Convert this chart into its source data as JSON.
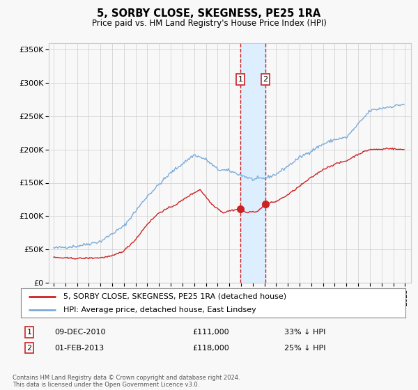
{
  "title": "5, SORBY CLOSE, SKEGNESS, PE25 1RA",
  "subtitle": "Price paid vs. HM Land Registry's House Price Index (HPI)",
  "ylim": [
    0,
    360000
  ],
  "yticks": [
    0,
    50000,
    100000,
    150000,
    200000,
    250000,
    300000,
    350000
  ],
  "ytick_labels": [
    "£0",
    "£50K",
    "£100K",
    "£150K",
    "£200K",
    "£250K",
    "£300K",
    "£350K"
  ],
  "xlim_start": 1994.6,
  "xlim_end": 2025.5,
  "sale1_date": 2010.94,
  "sale1_price": 111000,
  "sale2_date": 2013.08,
  "sale2_price": 118000,
  "legend_line1": "5, SORBY CLOSE, SKEGNESS, PE25 1RA (detached house)",
  "legend_line2": "HPI: Average price, detached house, East Lindsey",
  "footnote": "Contains HM Land Registry data © Crown copyright and database right 2024.\nThis data is licensed under the Open Government Licence v3.0.",
  "hpi_color": "#7aabdc",
  "property_color": "#cc2222",
  "shade_color": "#ddeeff",
  "grid_color": "#cccccc",
  "bg_color": "#f8f8f8"
}
